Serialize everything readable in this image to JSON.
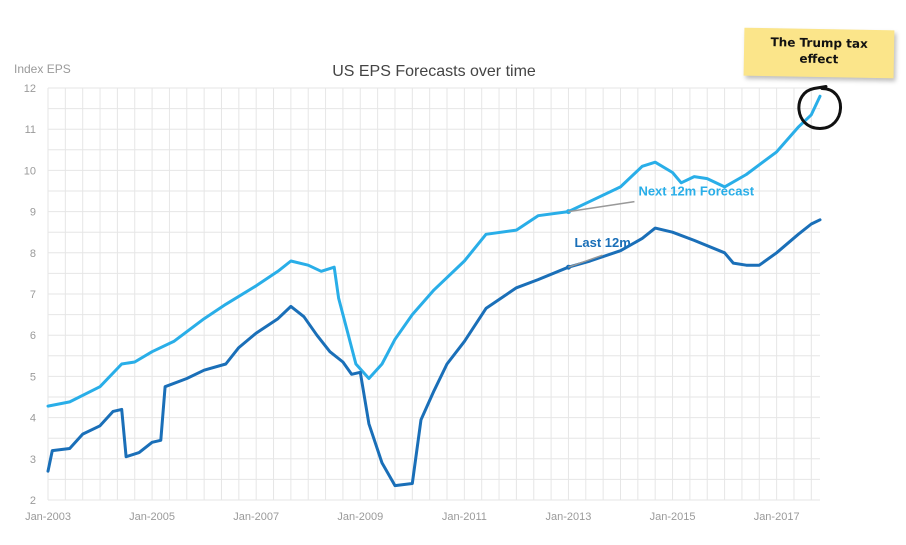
{
  "chart_data": {
    "type": "line",
    "title": "US EPS Forecasts over time",
    "ylabel": "Index EPS",
    "xlabel": "",
    "ylim": [
      2,
      12
    ],
    "yticks": [
      2,
      3,
      4,
      5,
      6,
      7,
      8,
      9,
      10,
      11,
      12
    ],
    "xlim": [
      "2003-01",
      "2017-11"
    ],
    "xticks": [
      "Jan-2003",
      "Jan-2005",
      "Jan-2007",
      "Jan-2009",
      "Jan-2011",
      "Jan-2013",
      "Jan-2015",
      "Jan-2017"
    ],
    "grid": true,
    "colors": {
      "next12m": "#29aee8",
      "last12m": "#1a6fb8",
      "annotation": "#999999"
    },
    "series": [
      {
        "name": "Next 12m Forecast",
        "color": "#29aee8",
        "points": [
          [
            "2003-01",
            4.28
          ],
          [
            "2003-06",
            4.38
          ],
          [
            "2004-01",
            4.75
          ],
          [
            "2004-06",
            5.3
          ],
          [
            "2004-09",
            5.35
          ],
          [
            "2005-01",
            5.6
          ],
          [
            "2005-06",
            5.85
          ],
          [
            "2006-01",
            6.4
          ],
          [
            "2006-06",
            6.75
          ],
          [
            "2007-01",
            7.2
          ],
          [
            "2007-06",
            7.55
          ],
          [
            "2007-09",
            7.8
          ],
          [
            "2008-01",
            7.7
          ],
          [
            "2008-04",
            7.55
          ],
          [
            "2008-07",
            7.65
          ],
          [
            "2008-08",
            6.9
          ],
          [
            "2008-10",
            6.1
          ],
          [
            "2008-12",
            5.3
          ],
          [
            "2009-03",
            4.95
          ],
          [
            "2009-06",
            5.3
          ],
          [
            "2009-09",
            5.9
          ],
          [
            "2010-01",
            6.5
          ],
          [
            "2010-06",
            7.1
          ],
          [
            "2011-01",
            7.8
          ],
          [
            "2011-06",
            8.45
          ],
          [
            "2012-01",
            8.55
          ],
          [
            "2012-06",
            8.9
          ],
          [
            "2013-01",
            9.0
          ],
          [
            "2013-06",
            9.25
          ],
          [
            "2014-01",
            9.6
          ],
          [
            "2014-06",
            10.1
          ],
          [
            "2014-09",
            10.2
          ],
          [
            "2015-01",
            9.95
          ],
          [
            "2015-03",
            9.7
          ],
          [
            "2015-06",
            9.85
          ],
          [
            "2015-09",
            9.8
          ],
          [
            "2016-01",
            9.6
          ],
          [
            "2016-06",
            9.9
          ],
          [
            "2017-01",
            10.45
          ],
          [
            "2017-06",
            11.05
          ],
          [
            "2017-09",
            11.35
          ],
          [
            "2017-11",
            11.8
          ]
        ]
      },
      {
        "name": "Last 12m",
        "color": "#1a6fb8",
        "points": [
          [
            "2003-01",
            2.7
          ],
          [
            "2003-02",
            3.2
          ],
          [
            "2003-06",
            3.25
          ],
          [
            "2003-09",
            3.6
          ],
          [
            "2004-01",
            3.8
          ],
          [
            "2004-04",
            4.15
          ],
          [
            "2004-06",
            4.2
          ],
          [
            "2004-07",
            3.05
          ],
          [
            "2004-10",
            3.15
          ],
          [
            "2005-01",
            3.4
          ],
          [
            "2005-03",
            3.45
          ],
          [
            "2005-04",
            4.75
          ],
          [
            "2005-09",
            4.95
          ],
          [
            "2006-01",
            5.15
          ],
          [
            "2006-06",
            5.3
          ],
          [
            "2006-09",
            5.7
          ],
          [
            "2007-01",
            6.05
          ],
          [
            "2007-06",
            6.4
          ],
          [
            "2007-09",
            6.7
          ],
          [
            "2007-12",
            6.45
          ],
          [
            "2008-03",
            6.0
          ],
          [
            "2008-06",
            5.6
          ],
          [
            "2008-09",
            5.35
          ],
          [
            "2008-11",
            5.05
          ],
          [
            "2009-01",
            5.1
          ],
          [
            "2009-03",
            3.85
          ],
          [
            "2009-06",
            2.9
          ],
          [
            "2009-09",
            2.35
          ],
          [
            "2010-01",
            2.4
          ],
          [
            "2010-03",
            3.95
          ],
          [
            "2010-06",
            4.65
          ],
          [
            "2010-09",
            5.3
          ],
          [
            "2011-01",
            5.85
          ],
          [
            "2011-06",
            6.65
          ],
          [
            "2012-01",
            7.15
          ],
          [
            "2012-06",
            7.35
          ],
          [
            "2013-01",
            7.65
          ],
          [
            "2013-06",
            7.8
          ],
          [
            "2014-01",
            8.05
          ],
          [
            "2014-06",
            8.35
          ],
          [
            "2014-09",
            8.6
          ],
          [
            "2015-01",
            8.5
          ],
          [
            "2015-06",
            8.3
          ],
          [
            "2016-01",
            8.0
          ],
          [
            "2016-03",
            7.75
          ],
          [
            "2016-06",
            7.7
          ],
          [
            "2016-09",
            7.7
          ],
          [
            "2017-01",
            8.0
          ],
          [
            "2017-06",
            8.45
          ],
          [
            "2017-09",
            8.7
          ],
          [
            "2017-11",
            8.8
          ]
        ]
      }
    ],
    "annotations": [
      {
        "text": "Next 12m Forecast",
        "anchor": [
          "2013-01",
          9.0
        ],
        "color": "#29aee8"
      },
      {
        "text": "Last 12m",
        "anchor": [
          "2013-01",
          7.65
        ],
        "color": "#1a6fb8"
      }
    ],
    "callout": {
      "text": "The Trump tax\neffect",
      "note_color": "#fbe58a",
      "circled_point": [
        "2017-11",
        11.6
      ]
    }
  }
}
